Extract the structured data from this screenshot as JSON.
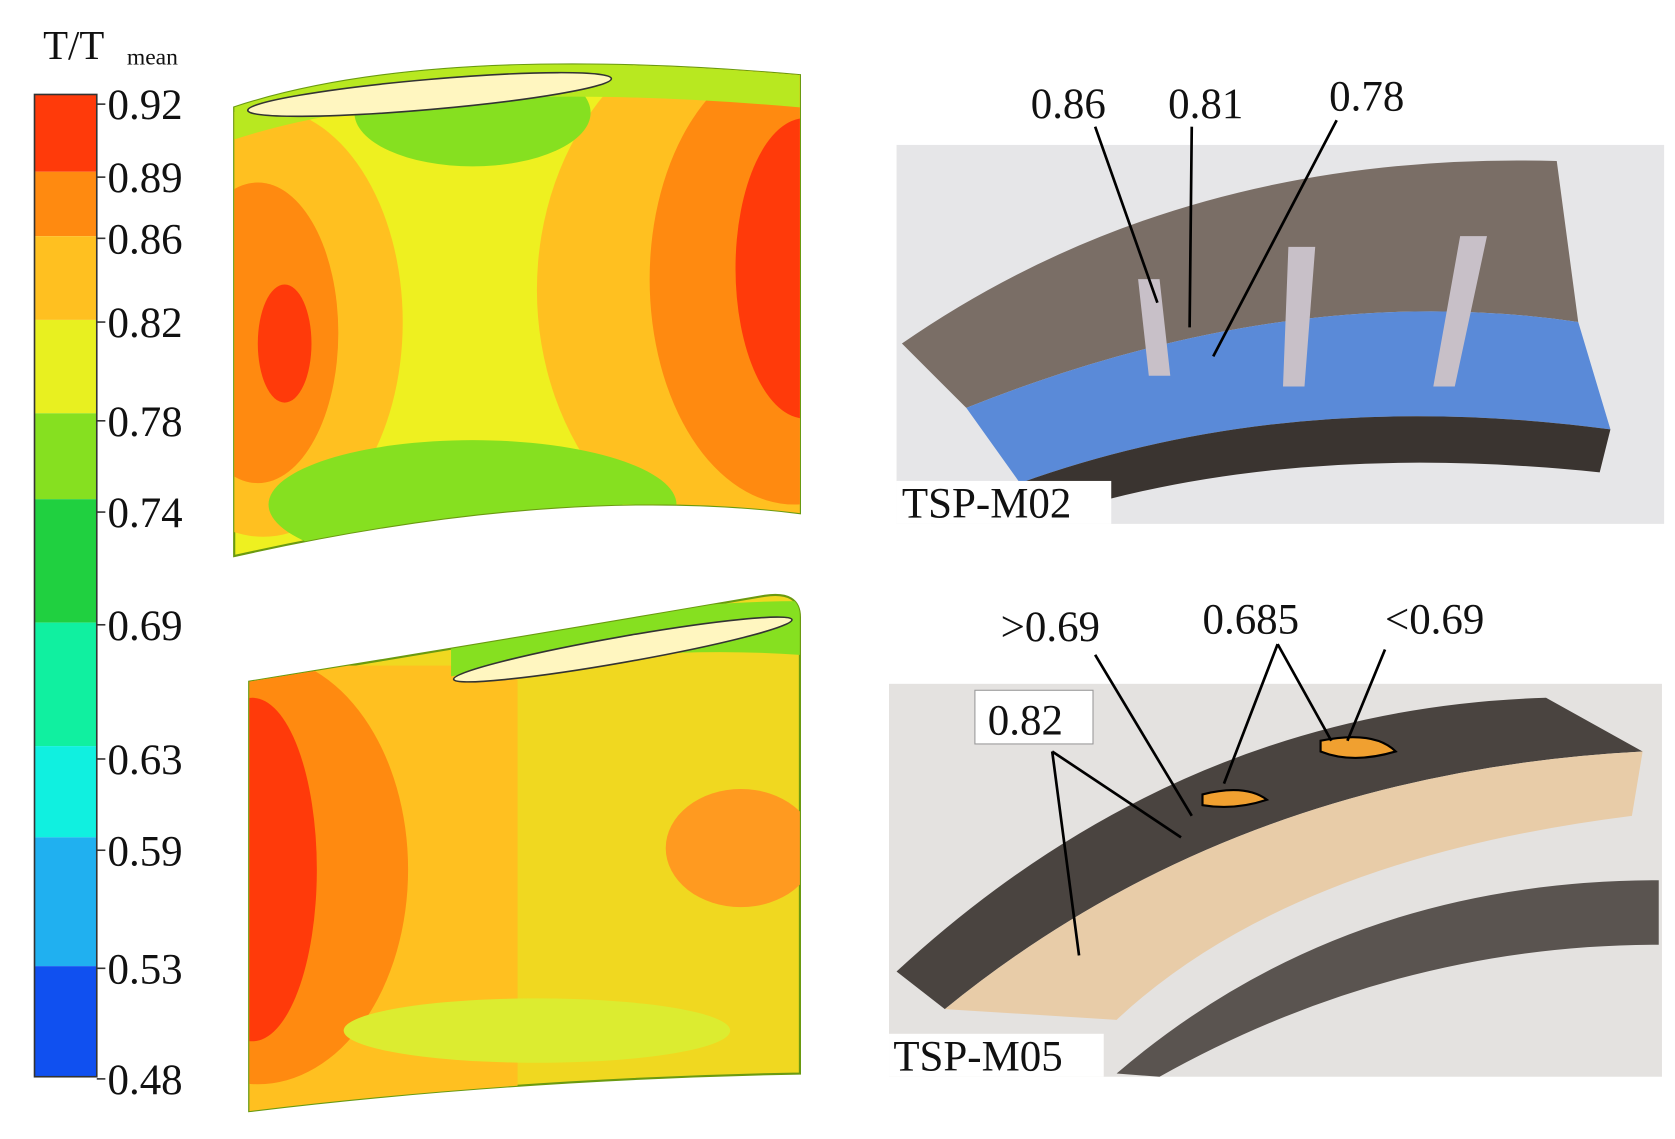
{
  "colorbar": {
    "title": "T/T",
    "title_sub": "mean",
    "tick_labels": [
      "0.92",
      "0.89",
      "0.86",
      "0.82",
      "0.78",
      "0.74",
      "0.69",
      "0.63",
      "0.59",
      "0.53",
      "0.48"
    ],
    "band_colors": [
      "#ff3a0a",
      "#ff8a10",
      "#ffc020",
      "#e8f020",
      "#86e020",
      "#20d040",
      "#10f0a0",
      "#10f0e0",
      "#20b0f0",
      "#1050f0"
    ]
  },
  "panels": [
    {
      "label": "TSP-M02",
      "annotations": [
        "0.86",
        "0.81",
        "0.78"
      ]
    },
    {
      "label": "TSP-M05",
      "annotations": [
        ">0.69",
        "0.685",
        "<0.69",
        "0.82"
      ]
    }
  ]
}
